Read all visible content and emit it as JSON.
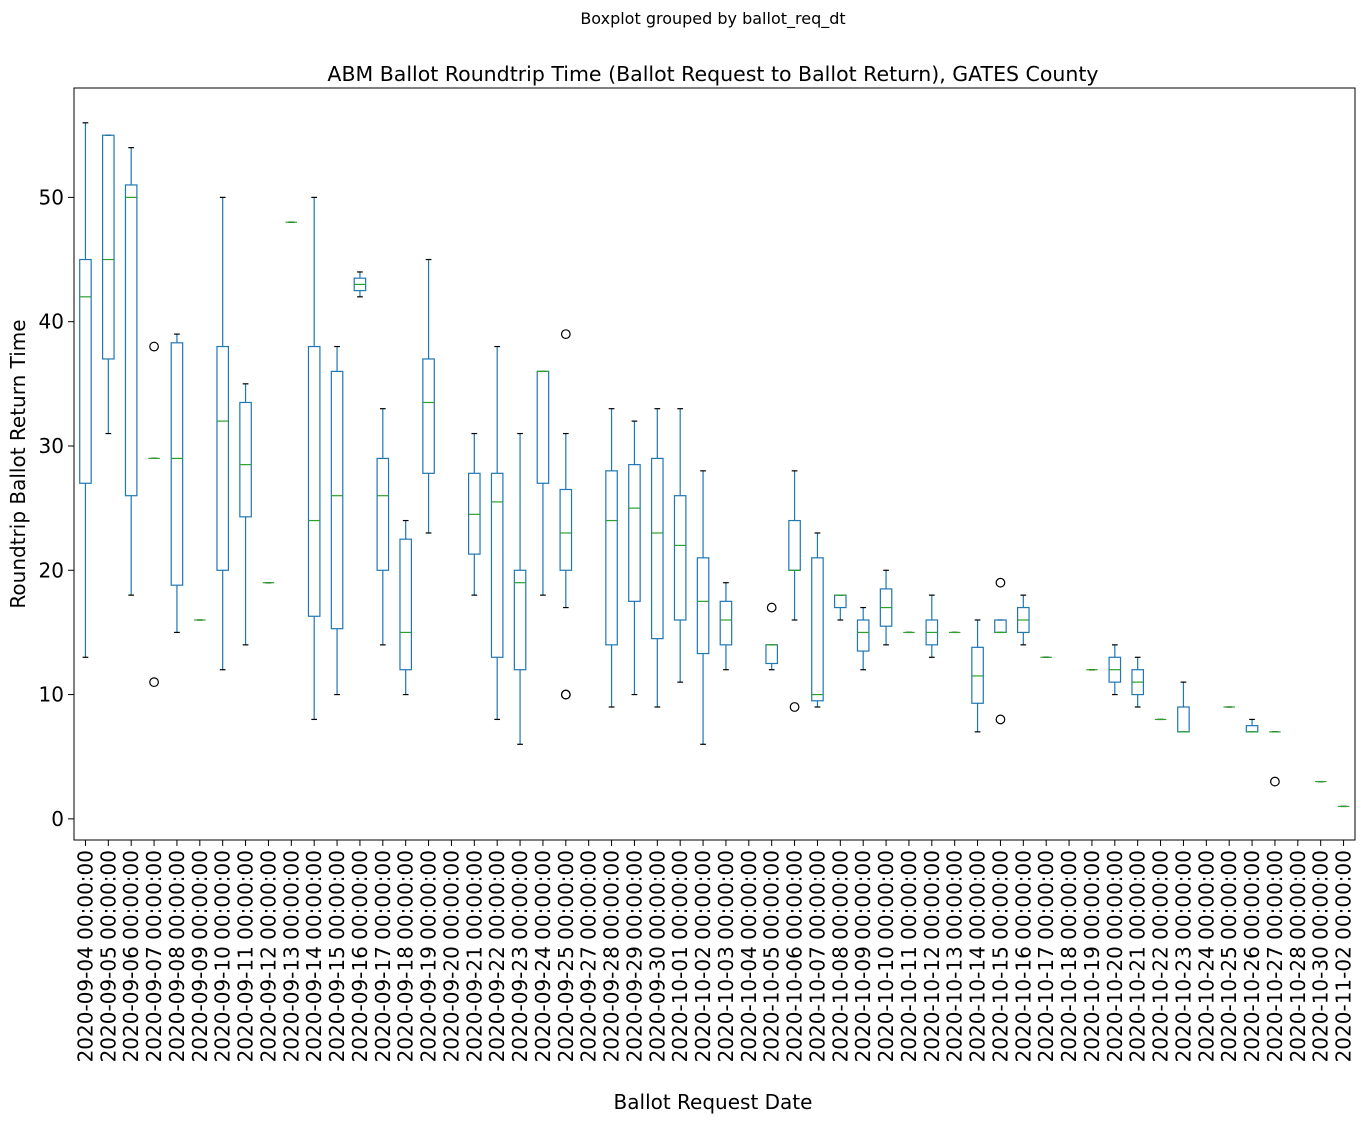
{
  "chart_data": {
    "type": "box",
    "suptitle": "Boxplot grouped by ballot_req_dt",
    "title": "ABM Ballot Roundtrip Time (Ballot Request to Ballot Return), GATES County",
    "xlabel": "Ballot Request Date",
    "ylabel": "Roundtrip Ballot Return Time",
    "ylim": [
      -1.7,
      58.8
    ],
    "yticks": [
      "0",
      "10",
      "20",
      "30",
      "40",
      "50"
    ],
    "grid": false,
    "colors": {
      "box": "#1f77b4",
      "median": "#2ca02c",
      "cap": "#000000",
      "flier": "#000000"
    },
    "categories": [
      "2020-09-04 00:00:00",
      "2020-09-05 00:00:00",
      "2020-09-06 00:00:00",
      "2020-09-07 00:00:00",
      "2020-09-08 00:00:00",
      "2020-09-09 00:00:00",
      "2020-09-10 00:00:00",
      "2020-09-11 00:00:00",
      "2020-09-12 00:00:00",
      "2020-09-13 00:00:00",
      "2020-09-14 00:00:00",
      "2020-09-15 00:00:00",
      "2020-09-16 00:00:00",
      "2020-09-17 00:00:00",
      "2020-09-18 00:00:00",
      "2020-09-19 00:00:00",
      "2020-09-20 00:00:00",
      "2020-09-21 00:00:00",
      "2020-09-22 00:00:00",
      "2020-09-23 00:00:00",
      "2020-09-24 00:00:00",
      "2020-09-25 00:00:00",
      "2020-09-27 00:00:00",
      "2020-09-28 00:00:00",
      "2020-09-29 00:00:00",
      "2020-09-30 00:00:00",
      "2020-10-01 00:00:00",
      "2020-10-02 00:00:00",
      "2020-10-03 00:00:00",
      "2020-10-04 00:00:00",
      "2020-10-05 00:00:00",
      "2020-10-06 00:00:00",
      "2020-10-07 00:00:00",
      "2020-10-08 00:00:00",
      "2020-10-09 00:00:00",
      "2020-10-10 00:00:00",
      "2020-10-11 00:00:00",
      "2020-10-12 00:00:00",
      "2020-10-13 00:00:00",
      "2020-10-14 00:00:00",
      "2020-10-15 00:00:00",
      "2020-10-16 00:00:00",
      "2020-10-17 00:00:00",
      "2020-10-18 00:00:00",
      "2020-10-19 00:00:00",
      "2020-10-20 00:00:00",
      "2020-10-21 00:00:00",
      "2020-10-22 00:00:00",
      "2020-10-23 00:00:00",
      "2020-10-24 00:00:00",
      "2020-10-25 00:00:00",
      "2020-10-26 00:00:00",
      "2020-10-27 00:00:00",
      "2020-10-28 00:00:00",
      "2020-10-30 00:00:00",
      "2020-11-02 00:00:00"
    ],
    "boxes": [
      {
        "whislo": 13,
        "q1": 27,
        "med": 42,
        "q3": 45,
        "whishi": 56,
        "fliers": []
      },
      {
        "whislo": 31,
        "q1": 37,
        "med": 45,
        "q3": 55,
        "whishi": 55,
        "fliers": []
      },
      {
        "whislo": 18,
        "q1": 26,
        "med": 50,
        "q3": 51,
        "whishi": 54,
        "fliers": []
      },
      {
        "whislo": 29,
        "q1": 29,
        "med": 29,
        "q3": 29,
        "whishi": 29,
        "fliers": [
          38,
          11
        ]
      },
      {
        "whislo": 15,
        "q1": 18.8,
        "med": 29,
        "q3": 38.3,
        "whishi": 39,
        "fliers": []
      },
      {
        "whislo": 16,
        "q1": 16,
        "med": 16,
        "q3": 16,
        "whishi": 16,
        "fliers": []
      },
      {
        "whislo": 12,
        "q1": 20,
        "med": 32,
        "q3": 38,
        "whishi": 50,
        "fliers": []
      },
      {
        "whislo": 14,
        "q1": 24.3,
        "med": 28.5,
        "q3": 33.5,
        "whishi": 35,
        "fliers": []
      },
      {
        "whislo": 19,
        "q1": 19,
        "med": 19,
        "q3": 19,
        "whishi": 19,
        "fliers": []
      },
      {
        "whislo": 48,
        "q1": 48,
        "med": 48,
        "q3": 48,
        "whishi": 48,
        "fliers": []
      },
      {
        "whislo": 8,
        "q1": 16.3,
        "med": 24,
        "q3": 38,
        "whishi": 50,
        "fliers": []
      },
      {
        "whislo": 10,
        "q1": 15.3,
        "med": 26,
        "q3": 36,
        "whishi": 38,
        "fliers": []
      },
      {
        "whislo": 42,
        "q1": 42.5,
        "med": 43,
        "q3": 43.5,
        "whishi": 44,
        "fliers": []
      },
      {
        "whislo": 14,
        "q1": 20,
        "med": 26,
        "q3": 29,
        "whishi": 33,
        "fliers": []
      },
      {
        "whislo": 10,
        "q1": 12,
        "med": 15,
        "q3": 22.5,
        "whishi": 24,
        "fliers": []
      },
      {
        "whislo": 23,
        "q1": 27.8,
        "med": 33.5,
        "q3": 37,
        "whishi": 45,
        "fliers": []
      },
      null,
      {
        "whislo": 18,
        "q1": 21.3,
        "med": 24.5,
        "q3": 27.8,
        "whishi": 31,
        "fliers": []
      },
      {
        "whislo": 8,
        "q1": 13,
        "med": 25.5,
        "q3": 27.8,
        "whishi": 38,
        "fliers": []
      },
      {
        "whislo": 6,
        "q1": 12,
        "med": 19,
        "q3": 20,
        "whishi": 31,
        "fliers": []
      },
      {
        "whislo": 18,
        "q1": 27,
        "med": 36,
        "q3": 36,
        "whishi": 36,
        "fliers": []
      },
      {
        "whislo": 17,
        "q1": 20,
        "med": 23,
        "q3": 26.5,
        "whishi": 31,
        "fliers": [
          39,
          10,
          10
        ]
      },
      null,
      {
        "whislo": 9,
        "q1": 14,
        "med": 24,
        "q3": 28,
        "whishi": 33,
        "fliers": []
      },
      {
        "whislo": 10,
        "q1": 17.5,
        "med": 25,
        "q3": 28.5,
        "whishi": 32,
        "fliers": []
      },
      {
        "whislo": 9,
        "q1": 14.5,
        "med": 23,
        "q3": 29,
        "whishi": 33,
        "fliers": []
      },
      {
        "whislo": 11,
        "q1": 16,
        "med": 22,
        "q3": 26,
        "whishi": 33,
        "fliers": []
      },
      {
        "whislo": 6,
        "q1": 13.3,
        "med": 17.5,
        "q3": 21,
        "whishi": 28,
        "fliers": []
      },
      {
        "whislo": 12,
        "q1": 14,
        "med": 16,
        "q3": 17.5,
        "whishi": 19,
        "fliers": []
      },
      null,
      {
        "whislo": 12,
        "q1": 12.5,
        "med": 14,
        "q3": 14,
        "whishi": 14,
        "fliers": [
          17
        ]
      },
      {
        "whislo": 16,
        "q1": 20,
        "med": 20,
        "q3": 24,
        "whishi": 28,
        "fliers": [
          9
        ]
      },
      {
        "whislo": 9,
        "q1": 9.5,
        "med": 10,
        "q3": 21,
        "whishi": 23,
        "fliers": []
      },
      {
        "whislo": 16,
        "q1": 17,
        "med": 18,
        "q3": 18,
        "whishi": 18,
        "fliers": []
      },
      {
        "whislo": 12,
        "q1": 13.5,
        "med": 15,
        "q3": 16,
        "whishi": 17,
        "fliers": []
      },
      {
        "whislo": 14,
        "q1": 15.5,
        "med": 17,
        "q3": 18.5,
        "whishi": 20,
        "fliers": []
      },
      {
        "whislo": 15,
        "q1": 15,
        "med": 15,
        "q3": 15,
        "whishi": 15,
        "fliers": []
      },
      {
        "whislo": 13,
        "q1": 14,
        "med": 15,
        "q3": 16,
        "whishi": 18,
        "fliers": []
      },
      {
        "whislo": 15,
        "q1": 15,
        "med": 15,
        "q3": 15,
        "whishi": 15,
        "fliers": []
      },
      {
        "whislo": 7,
        "q1": 9.3,
        "med": 11.5,
        "q3": 13.8,
        "whishi": 16,
        "fliers": []
      },
      {
        "whislo": 15,
        "q1": 15,
        "med": 15,
        "q3": 16,
        "whishi": 16,
        "fliers": [
          19,
          8
        ]
      },
      {
        "whislo": 14,
        "q1": 15,
        "med": 16,
        "q3": 17,
        "whishi": 18,
        "fliers": []
      },
      {
        "whislo": 13,
        "q1": 13,
        "med": 13,
        "q3": 13,
        "whishi": 13,
        "fliers": []
      },
      null,
      {
        "whislo": 12,
        "q1": 12,
        "med": 12,
        "q3": 12,
        "whishi": 12,
        "fliers": []
      },
      {
        "whislo": 10,
        "q1": 11,
        "med": 12,
        "q3": 13,
        "whishi": 14,
        "fliers": []
      },
      {
        "whislo": 9,
        "q1": 10,
        "med": 11,
        "q3": 12,
        "whishi": 13,
        "fliers": []
      },
      {
        "whislo": 8,
        "q1": 8,
        "med": 8,
        "q3": 8,
        "whishi": 8,
        "fliers": []
      },
      {
        "whislo": 7,
        "q1": 7,
        "med": 7,
        "q3": 9,
        "whishi": 11,
        "fliers": []
      },
      null,
      {
        "whislo": 9,
        "q1": 9,
        "med": 9,
        "q3": 9,
        "whishi": 9,
        "fliers": []
      },
      {
        "whislo": 7,
        "q1": 7,
        "med": 7,
        "q3": 7.5,
        "whishi": 8,
        "fliers": []
      },
      {
        "whislo": 7,
        "q1": 7,
        "med": 7,
        "q3": 7,
        "whishi": 7,
        "fliers": [
          3
        ]
      },
      null,
      {
        "whislo": 3,
        "q1": 3,
        "med": 3,
        "q3": 3,
        "whishi": 3,
        "fliers": []
      },
      {
        "whislo": 1,
        "q1": 1,
        "med": 1,
        "q3": 1,
        "whishi": 1,
        "fliers": []
      }
    ]
  }
}
